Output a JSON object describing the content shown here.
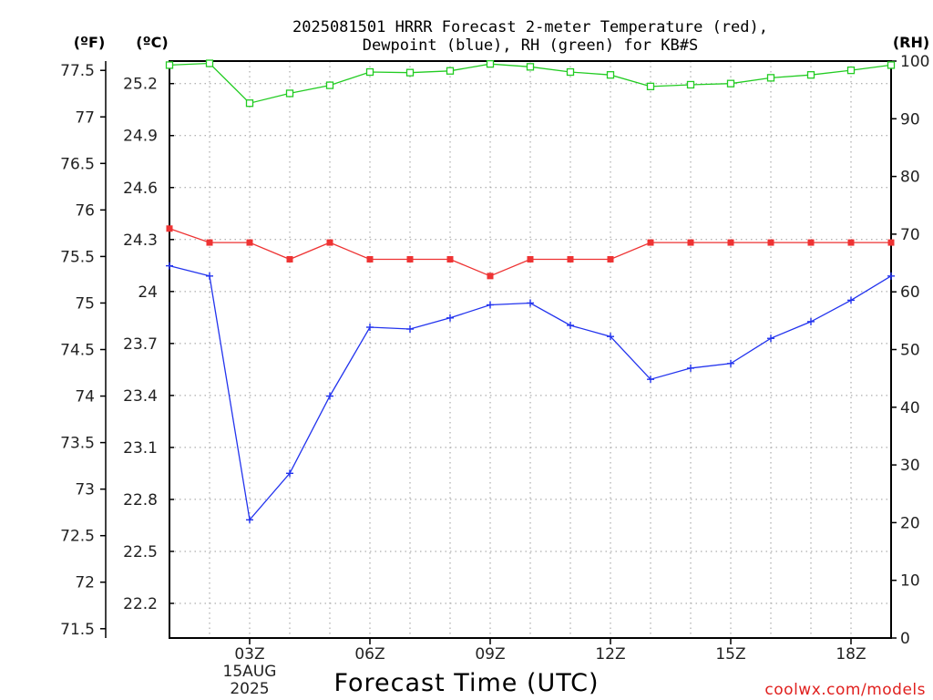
{
  "chart_data": {
    "type": "line",
    "title_line1": "2025081501 HRRR Forecast 2-meter Temperature (red),",
    "title_line2": "Dewpoint (blue), RH (green) for KB#S",
    "xlabel": "Forecast Time (UTC)",
    "credit": "coolwx.com/models",
    "unit_labels": {
      "f": "(ºF)",
      "c": "(ºC)",
      "rh": "(RH)"
    },
    "x_hours": [
      1,
      2,
      3,
      4,
      5,
      6,
      7,
      8,
      9,
      10,
      11,
      12,
      13,
      14,
      15,
      16,
      17,
      18,
      19
    ],
    "xlim": [
      1,
      19
    ],
    "x_ticks": [
      {
        "hour": 3,
        "lines": [
          "03Z",
          "15AUG",
          "2025"
        ]
      },
      {
        "hour": 6,
        "lines": [
          "06Z"
        ]
      },
      {
        "hour": 9,
        "lines": [
          "09Z"
        ]
      },
      {
        "hour": 12,
        "lines": [
          "12Z"
        ]
      },
      {
        "hour": 15,
        "lines": [
          "15Z"
        ]
      },
      {
        "hour": 18,
        "lines": [
          "18Z"
        ]
      }
    ],
    "y_left_f": {
      "lim": [
        71.4,
        77.6
      ],
      "ticks": [
        "71.5",
        "72",
        "72.5",
        "73",
        "73.5",
        "74",
        "74.5",
        "75",
        "75.5",
        "76",
        "76.5",
        "77",
        "77.5"
      ]
    },
    "y_left_c": {
      "lim": [
        22.0,
        25.33
      ],
      "ticks": [
        "22.2",
        "22.5",
        "22.8",
        "23.1",
        "23.4",
        "23.7",
        "24",
        "24.3",
        "24.6",
        "24.9",
        "25.2"
      ]
    },
    "y_right_rh": {
      "lim": [
        0,
        100
      ],
      "ticks": [
        "0",
        "10",
        "20",
        "30",
        "40",
        "50",
        "60",
        "70",
        "80",
        "90",
        "100"
      ]
    },
    "grid": true,
    "series": [
      {
        "name": "Temperature",
        "color": "#ee3333",
        "marker": "filled-square",
        "axis": "f",
        "values": [
          75.8,
          75.65,
          75.65,
          75.47,
          75.65,
          75.47,
          75.47,
          75.47,
          75.29,
          75.47,
          75.47,
          75.47,
          75.65,
          75.65,
          75.65,
          75.65,
          75.65,
          75.65,
          75.65
        ]
      },
      {
        "name": "Dewpoint",
        "color": "#2233ee",
        "marker": "plus",
        "axis": "f",
        "values": [
          75.4,
          75.29,
          72.67,
          73.17,
          74.0,
          74.74,
          74.72,
          74.84,
          74.98,
          75.0,
          74.76,
          74.64,
          74.18,
          74.3,
          74.35,
          74.62,
          74.8,
          75.03,
          75.29
        ]
      },
      {
        "name": "RH",
        "color": "#22cc22",
        "marker": "open-square",
        "axis": "rh",
        "values": [
          99.3,
          99.6,
          92.7,
          94.4,
          95.8,
          98.1,
          98.0,
          98.3,
          99.5,
          99.0,
          98.1,
          97.6,
          95.6,
          95.9,
          96.1,
          97.1,
          97.6,
          98.4,
          99.3
        ]
      }
    ]
  }
}
